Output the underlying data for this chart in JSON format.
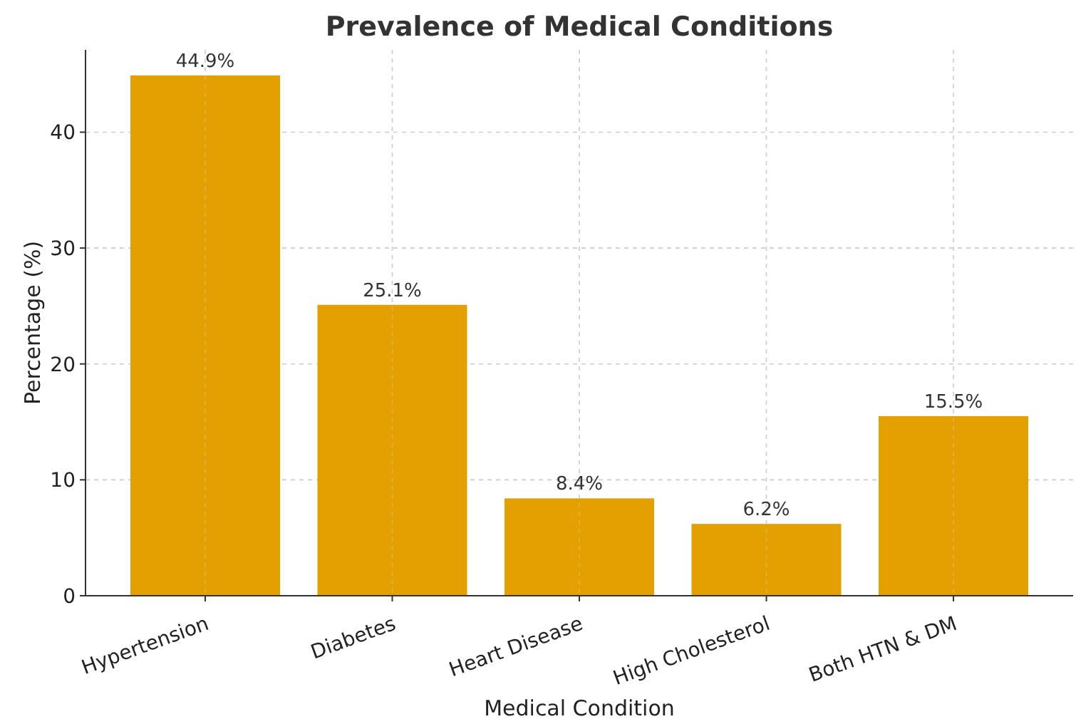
{
  "chart_data": {
    "type": "bar",
    "title": "Prevalence of Medical Conditions",
    "xlabel": "Medical Condition",
    "ylabel": "Percentage (%)",
    "categories": [
      "Hypertension",
      "Diabetes",
      "Heart Disease",
      "High Cholesterol",
      "Both HTN & DM"
    ],
    "values": [
      44.9,
      25.1,
      8.4,
      6.2,
      15.5
    ],
    "value_labels": [
      "44.9%",
      "25.1%",
      "8.4%",
      "6.2%",
      "15.5%"
    ],
    "color": "#e3a000",
    "ylim": [
      0,
      47.1
    ],
    "yticks": [
      0,
      10,
      20,
      30,
      40
    ],
    "grid": true
  }
}
